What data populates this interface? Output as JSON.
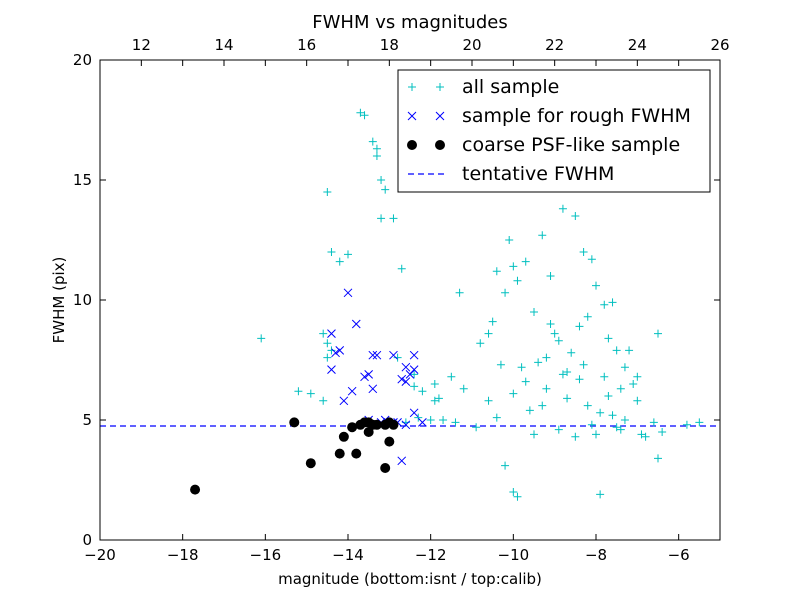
{
  "chart_data": {
    "type": "scatter",
    "title": "FWHM vs magnitudes",
    "xlabel": "magnitude (bottom:isnt / top:calib)",
    "ylabel": "FWHM (pix)",
    "xlim": [
      -20,
      -5
    ],
    "ylim": [
      0,
      20
    ],
    "top_xlim": [
      11,
      26
    ],
    "x_ticks": [
      -20,
      -18,
      -16,
      -14,
      -12,
      -10,
      -8,
      -6
    ],
    "x_tick_labels": [
      "−20",
      "−18",
      "−16",
      "−14",
      "−12",
      "−10",
      "−8",
      "−6"
    ],
    "y_ticks": [
      0,
      5,
      10,
      15,
      20
    ],
    "y_tick_labels": [
      "0",
      "5",
      "10",
      "15",
      "20"
    ],
    "top_ticks": [
      12,
      14,
      16,
      18,
      20,
      22,
      24,
      26
    ],
    "top_tick_labels": [
      "12",
      "14",
      "16",
      "18",
      "20",
      "22",
      "24",
      "26"
    ],
    "legend_position": "top-right",
    "series": [
      {
        "name": "all sample",
        "marker": "plus",
        "color": "#00bfbf",
        "points": [
          [
            -16.1,
            8.4
          ],
          [
            -15.2,
            6.2
          ],
          [
            -14.9,
            6.1
          ],
          [
            -14.6,
            8.6
          ],
          [
            -14.5,
            8.2
          ],
          [
            -14.5,
            7.6
          ],
          [
            -14.4,
            7.9
          ],
          [
            -14.6,
            5.8
          ],
          [
            -14.5,
            14.5
          ],
          [
            -14.4,
            12.0
          ],
          [
            -14.2,
            11.6
          ],
          [
            -14.0,
            11.9
          ],
          [
            -13.7,
            17.8
          ],
          [
            -13.6,
            17.7
          ],
          [
            -13.4,
            16.6
          ],
          [
            -13.3,
            16.3
          ],
          [
            -13.3,
            16.0
          ],
          [
            -13.2,
            15.0
          ],
          [
            -13.1,
            14.6
          ],
          [
            -13.2,
            13.4
          ],
          [
            -12.9,
            13.4
          ],
          [
            -12.7,
            11.3
          ],
          [
            -12.4,
            6.4
          ],
          [
            -12.4,
            6.9
          ],
          [
            -12.8,
            7.6
          ],
          [
            -12.2,
            6.2
          ],
          [
            -12.0,
            5.0
          ],
          [
            -11.9,
            6.5
          ],
          [
            -11.8,
            5.9
          ],
          [
            -11.5,
            6.8
          ],
          [
            -11.2,
            6.3
          ],
          [
            -11.3,
            10.3
          ],
          [
            -10.8,
            8.2
          ],
          [
            -10.6,
            8.6
          ],
          [
            -10.5,
            9.1
          ],
          [
            -10.4,
            11.2
          ],
          [
            -10.2,
            10.3
          ],
          [
            -10.1,
            12.5
          ],
          [
            -10.0,
            11.4
          ],
          [
            -9.9,
            10.8
          ],
          [
            -9.7,
            11.6
          ],
          [
            -9.5,
            9.5
          ],
          [
            -9.3,
            12.7
          ],
          [
            -9.1,
            11.0
          ],
          [
            -9.1,
            9.0
          ],
          [
            -8.9,
            8.3
          ],
          [
            -8.8,
            13.8
          ],
          [
            -8.5,
            13.5
          ],
          [
            -8.3,
            12.0
          ],
          [
            -8.1,
            11.7
          ],
          [
            -8.0,
            10.6
          ],
          [
            -7.8,
            9.8
          ],
          [
            -7.6,
            9.9
          ],
          [
            -7.5,
            7.9
          ],
          [
            -7.3,
            7.2
          ],
          [
            -7.0,
            6.8
          ],
          [
            -6.5,
            8.6
          ],
          [
            -6.5,
            3.4
          ],
          [
            -7.9,
            1.9
          ],
          [
            -9.9,
            1.8
          ],
          [
            -10.0,
            2.0
          ],
          [
            -10.2,
            3.1
          ],
          [
            -11.9,
            5.8
          ],
          [
            -10.4,
            5.1
          ],
          [
            -10.0,
            6.1
          ],
          [
            -9.8,
            7.2
          ],
          [
            -9.6,
            5.4
          ],
          [
            -9.4,
            7.4
          ],
          [
            -9.2,
            6.3
          ],
          [
            -9.0,
            8.6
          ],
          [
            -8.8,
            6.9
          ],
          [
            -8.6,
            7.8
          ],
          [
            -8.4,
            6.7
          ],
          [
            -8.2,
            5.6
          ],
          [
            -8.0,
            4.4
          ],
          [
            -7.8,
            6.8
          ],
          [
            -7.6,
            5.2
          ],
          [
            -7.4,
            4.6
          ],
          [
            -7.2,
            7.9
          ],
          [
            -7.0,
            5.8
          ],
          [
            -6.8,
            4.3
          ],
          [
            -6.6,
            4.9
          ],
          [
            -6.4,
            4.5
          ],
          [
            -5.8,
            4.8
          ],
          [
            -5.5,
            4.9
          ],
          [
            -9.5,
            4.4
          ],
          [
            -9.7,
            6.6
          ],
          [
            -10.3,
            7.3
          ],
          [
            -10.6,
            5.8
          ],
          [
            -10.9,
            4.7
          ],
          [
            -11.4,
            4.9
          ],
          [
            -11.7,
            5.0
          ],
          [
            -12.3,
            5.1
          ],
          [
            -12.6,
            4.9
          ],
          [
            -9.3,
            5.6
          ],
          [
            -8.9,
            4.6
          ],
          [
            -8.7,
            5.9
          ],
          [
            -8.5,
            4.3
          ],
          [
            -8.3,
            7.3
          ],
          [
            -8.1,
            4.8
          ],
          [
            -7.9,
            5.3
          ],
          [
            -7.7,
            6.0
          ],
          [
            -7.5,
            4.7
          ],
          [
            -7.3,
            5.0
          ],
          [
            -7.1,
            6.5
          ],
          [
            -6.9,
            4.4
          ],
          [
            -9.2,
            7.6
          ],
          [
            -8.7,
            7.0
          ],
          [
            -8.4,
            8.9
          ],
          [
            -8.2,
            9.3
          ],
          [
            -7.7,
            8.4
          ],
          [
            -7.4,
            6.3
          ]
        ]
      },
      {
        "name": "sample for rough FWHM",
        "marker": "x",
        "color": "#0000ff",
        "points": [
          [
            -14.0,
            10.3
          ],
          [
            -13.8,
            9.0
          ],
          [
            -14.4,
            8.6
          ],
          [
            -14.3,
            7.8
          ],
          [
            -14.2,
            7.9
          ],
          [
            -14.4,
            7.1
          ],
          [
            -13.9,
            6.2
          ],
          [
            -13.6,
            6.8
          ],
          [
            -13.5,
            6.9
          ],
          [
            -13.4,
            7.7
          ],
          [
            -13.3,
            7.7
          ],
          [
            -12.9,
            7.7
          ],
          [
            -13.4,
            6.3
          ],
          [
            -12.7,
            6.7
          ],
          [
            -12.6,
            6.6
          ],
          [
            -12.6,
            7.2
          ],
          [
            -12.4,
            7.1
          ],
          [
            -12.4,
            7.7
          ],
          [
            -12.5,
            6.9
          ],
          [
            -14.1,
            5.8
          ],
          [
            -13.5,
            5.0
          ],
          [
            -13.2,
            4.9
          ],
          [
            -13.0,
            4.8
          ],
          [
            -12.8,
            4.9
          ],
          [
            -12.6,
            4.8
          ],
          [
            -12.4,
            5.3
          ],
          [
            -12.2,
            4.9
          ],
          [
            -12.7,
            3.3
          ],
          [
            -13.1,
            5.0
          ],
          [
            -12.9,
            4.9
          ]
        ]
      },
      {
        "name": "coarse PSF-like sample",
        "marker": "circle",
        "color": "#000000",
        "points": [
          [
            -17.7,
            2.1
          ],
          [
            -15.3,
            4.9
          ],
          [
            -14.9,
            3.2
          ],
          [
            -14.2,
            3.6
          ],
          [
            -14.1,
            4.3
          ],
          [
            -13.9,
            4.7
          ],
          [
            -13.8,
            3.6
          ],
          [
            -13.5,
            4.5
          ],
          [
            -13.4,
            4.8
          ],
          [
            -13.3,
            4.8
          ],
          [
            -13.5,
            4.9
          ],
          [
            -13.1,
            3.0
          ],
          [
            -13.0,
            4.1
          ],
          [
            -12.9,
            4.8
          ],
          [
            -13.1,
            4.8
          ],
          [
            -13.0,
            4.9
          ],
          [
            -13.6,
            4.9
          ],
          [
            -13.7,
            4.8
          ]
        ]
      }
    ],
    "reference_lines": [
      {
        "name": "tentative FWHM",
        "style": "dashed",
        "color": "#0000ff",
        "y": 4.75
      }
    ]
  }
}
